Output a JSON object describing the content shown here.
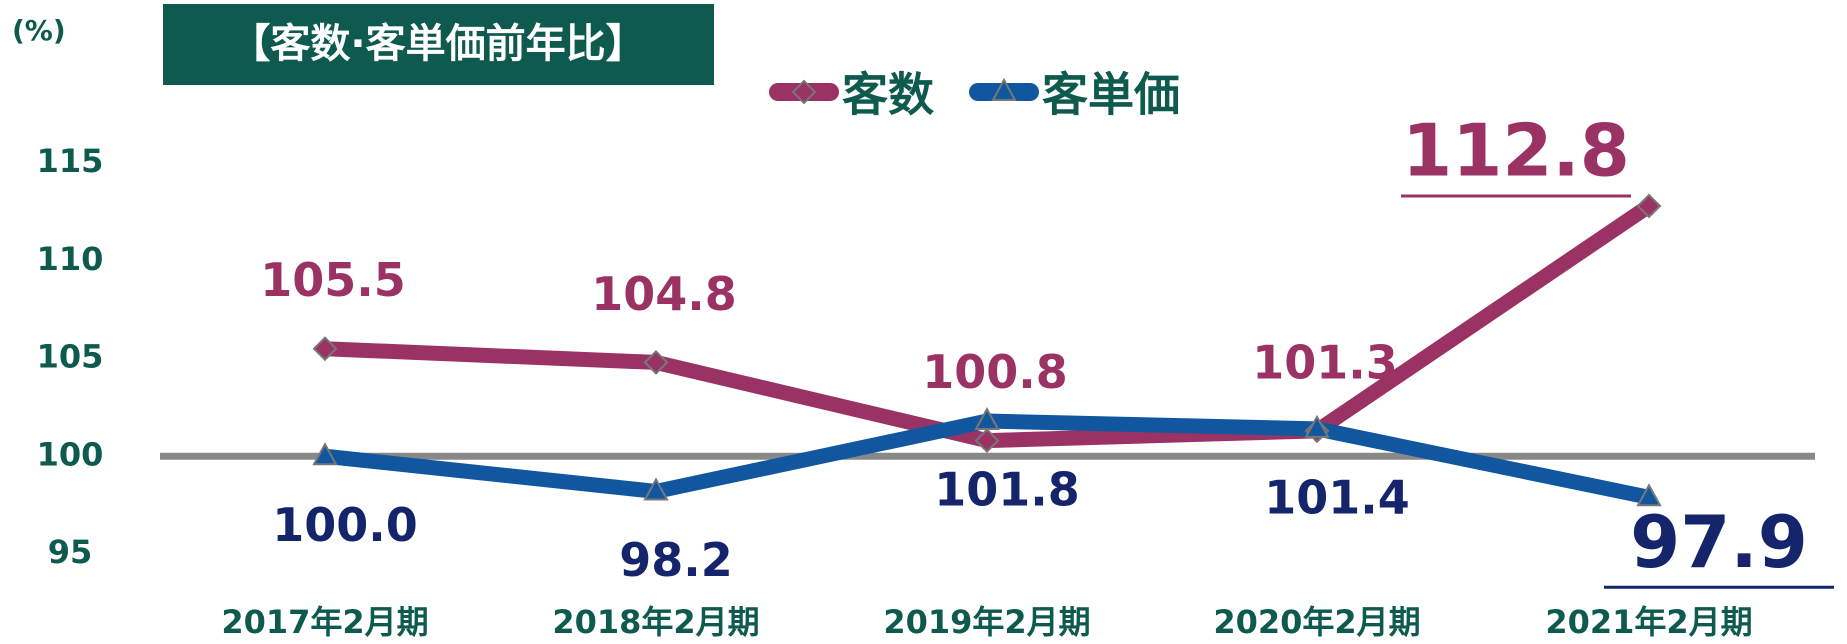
{
  "chart_data": {
    "type": "line",
    "title": "【客数·客単価前年比】",
    "y_label": "(%)",
    "categories": [
      "2017年2月期",
      "2018年2月期",
      "2019年2月期",
      "2020年2月期",
      "2021年2月期"
    ],
    "series": [
      {
        "name": "客数",
        "color": "#9b3264",
        "label_color": "#9b3264",
        "marker": "diamond",
        "values": [
          105.5,
          104.8,
          100.8,
          101.3,
          112.8
        ],
        "value_labels": [
          "105.5",
          "104.8",
          "100.8",
          "101.3",
          "112.8"
        ]
      },
      {
        "name": "客単価",
        "color": "#1157a0",
        "label_color": "#14256b",
        "marker": "triangle",
        "values": [
          100,
          98.2,
          101.8,
          101.4,
          97.9
        ],
        "value_labels": [
          "100.0",
          "98.2",
          "101.8",
          "101.4",
          "97.9"
        ]
      }
    ],
    "ylim": [
      95,
      115
    ],
    "yticks": [
      95,
      100,
      105,
      110,
      115
    ],
    "reference_line": 100,
    "grid": false,
    "legend": "top"
  }
}
